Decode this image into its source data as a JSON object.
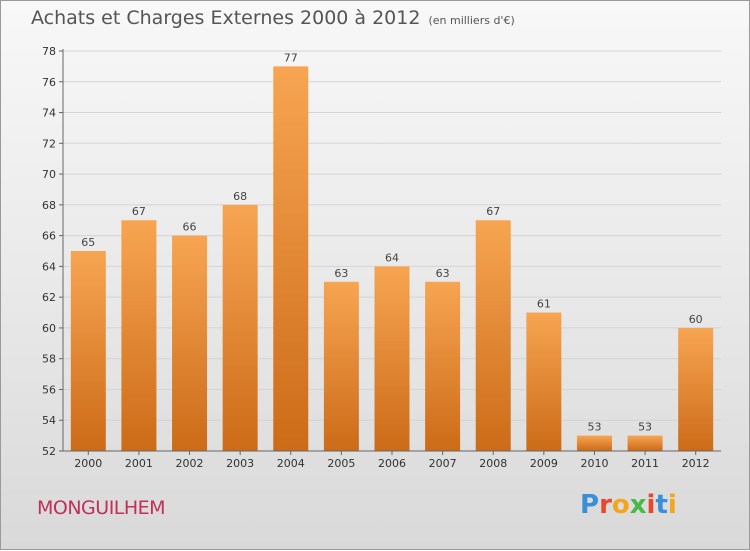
{
  "header": {
    "title": "Achats et Charges Externes 2000 à 2012",
    "subtitle": "(en milliers d'€)"
  },
  "footer": {
    "place": "MONGUILHEM",
    "logo": "Proxiti",
    "logo_colors": [
      "#3a8fd8",
      "#e8472b",
      "#f2a61d",
      "#48b848",
      "#e8472b",
      "#3a8fd8",
      "#f2a61d"
    ]
  },
  "colors": {
    "bar_top": "#f7a552",
    "bar_bottom": "#cc6b18",
    "axis": "#666666"
  },
  "chart_data": {
    "type": "bar",
    "categories": [
      "2000",
      "2001",
      "2002",
      "2003",
      "2004",
      "2005",
      "2006",
      "2007",
      "2008",
      "2009",
      "2010",
      "2011",
      "2012"
    ],
    "values": [
      65,
      67,
      66,
      68,
      77,
      63,
      64,
      63,
      67,
      61,
      53,
      53,
      60
    ],
    "ylim": [
      52,
      78
    ],
    "yticks": [
      52,
      54,
      56,
      58,
      60,
      62,
      64,
      66,
      68,
      70,
      72,
      74,
      76,
      78
    ],
    "grid": true
  }
}
